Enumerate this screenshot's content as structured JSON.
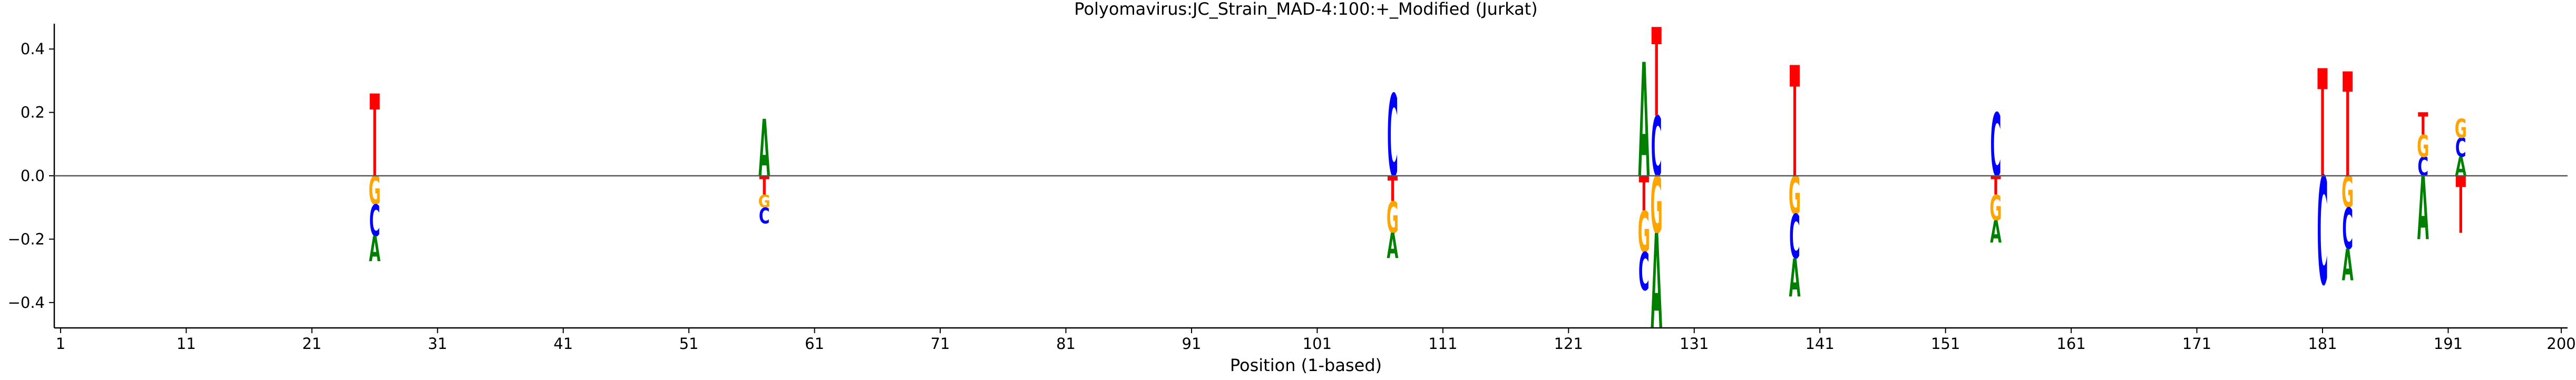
{
  "chart_data": {
    "type": "sequence-logo",
    "title": "Polyomavirus:JC_Strain_MAD-4:100:+_Modified  (Jurkat)",
    "xlabel": "Position (1-based)",
    "ylabel": "",
    "xlim": [
      0.5,
      200.5
    ],
    "ylim": [
      -0.48,
      0.48
    ],
    "x_ticks": [
      1,
      11,
      21,
      31,
      41,
      51,
      61,
      71,
      81,
      91,
      101,
      111,
      121,
      131,
      141,
      151,
      161,
      171,
      181,
      191,
      200
    ],
    "x_tick_labels": [
      "1",
      "11",
      "21",
      "31",
      "41",
      "51",
      "61",
      "71",
      "81",
      "91",
      "101",
      "111",
      "121",
      "131",
      "141",
      "151",
      "161",
      "171",
      "181",
      "191",
      "200"
    ],
    "y_ticks": [
      -0.4,
      -0.2,
      0.0,
      0.2,
      0.4
    ],
    "y_tick_labels": [
      "−0.4",
      "−0.2",
      "0.0",
      "0.2",
      "0.4"
    ],
    "zero_line": true,
    "grid": false,
    "colors": {
      "A": "#008000",
      "C": "#0000ff",
      "G": "#ffa500",
      "T": "#ff0000"
    },
    "positions": [
      {
        "x": 26,
        "pos": [
          [
            "T",
            0.26
          ]
        ],
        "neg": [
          [
            "G",
            0.09
          ],
          [
            "C",
            0.1
          ],
          [
            "A",
            0.08
          ]
        ]
      },
      {
        "x": 57,
        "pos": [
          [
            "A",
            0.18
          ]
        ],
        "neg": [
          [
            "T",
            0.06
          ],
          [
            "G",
            0.04
          ],
          [
            "C",
            0.05
          ]
        ]
      },
      {
        "x": 107,
        "pos": [
          [
            "C",
            0.26
          ]
        ],
        "neg": [
          [
            "T",
            0.08
          ],
          [
            "G",
            0.1
          ],
          [
            "A",
            0.08
          ]
        ]
      },
      {
        "x": 127,
        "pos": [
          [
            "A",
            0.36
          ]
        ],
        "neg": [
          [
            "T",
            0.11
          ],
          [
            "G",
            0.13
          ],
          [
            "C",
            0.12
          ]
        ]
      },
      {
        "x": 128,
        "pos": [
          [
            "C",
            0.19
          ],
          [
            "T",
            0.28
          ]
        ],
        "neg": [
          [
            "G",
            0.18
          ],
          [
            "A",
            0.3
          ]
        ]
      },
      {
        "x": 139,
        "pos": [
          [
            "T",
            0.35
          ]
        ],
        "neg": [
          [
            "G",
            0.12
          ],
          [
            "C",
            0.14
          ],
          [
            "A",
            0.12
          ]
        ]
      },
      {
        "x": 155,
        "pos": [
          [
            "C",
            0.2
          ]
        ],
        "neg": [
          [
            "T",
            0.06
          ],
          [
            "G",
            0.08
          ],
          [
            "A",
            0.07
          ]
        ]
      },
      {
        "x": 181,
        "pos": [
          [
            "T",
            0.34
          ]
        ],
        "neg": [
          [
            "C",
            0.34
          ]
        ]
      },
      {
        "x": 183,
        "pos": [
          [
            "T",
            0.33
          ]
        ],
        "neg": [
          [
            "G",
            0.1
          ],
          [
            "C",
            0.13
          ],
          [
            "A",
            0.1
          ]
        ]
      },
      {
        "x": 189,
        "pos": [
          [
            "C",
            0.06
          ],
          [
            "G",
            0.07
          ],
          [
            "T",
            0.07
          ]
        ],
        "neg": [
          [
            "A",
            0.2
          ]
        ]
      },
      {
        "x": 192,
        "pos": [
          [
            "A",
            0.06
          ],
          [
            "C",
            0.06
          ],
          [
            "G",
            0.06
          ]
        ],
        "neg": [
          [
            "T",
            0.18
          ]
        ]
      }
    ]
  }
}
